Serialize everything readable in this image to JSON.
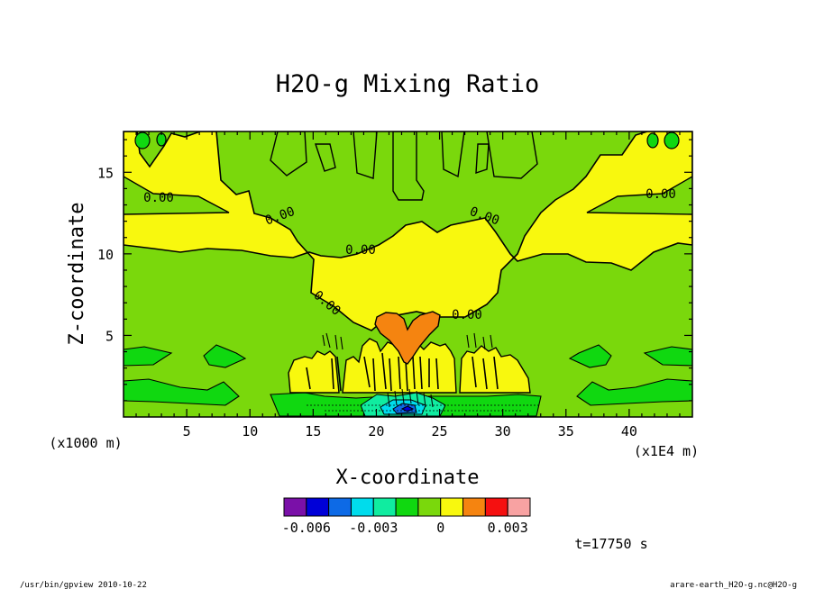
{
  "chart_data": {
    "type": "contour",
    "title": "H2O-g Mixing Ratio",
    "xlabel": "X-coordinate",
    "ylabel": "Z-coordinate",
    "x_unit": "(x1E4 m)",
    "y_unit": "(x1000 m)",
    "xlim": [
      0,
      45
    ],
    "ylim": [
      0,
      17.5
    ],
    "x_ticks": [
      "5",
      "10",
      "15",
      "20",
      "25",
      "30",
      "35",
      "40"
    ],
    "y_ticks": [
      "5",
      "10",
      "15"
    ],
    "contour_labels": [
      "0.00",
      "0.00",
      "0.00",
      "0.00",
      "0.00",
      "0.00",
      "0.00"
    ],
    "colorbar": {
      "colors": [
        "#7a10a8",
        "#0000d8",
        "#0d6ae6",
        "#00dcec",
        "#10eca0",
        "#10d810",
        "#7ad80c",
        "#f8f80e",
        "#f58410",
        "#f51010",
        "#f8a2a2"
      ],
      "tick_labels": [
        "-0.006",
        "-0.003",
        "0",
        "0.003"
      ],
      "tick_values": [
        -0.006,
        -0.003,
        0,
        0.003
      ]
    },
    "time_label": "t=17750 s"
  },
  "footer": {
    "left": "/usr/bin/gpview  2010-10-22",
    "right": "arare-earth_H2O-g.nc@H2O-g"
  }
}
